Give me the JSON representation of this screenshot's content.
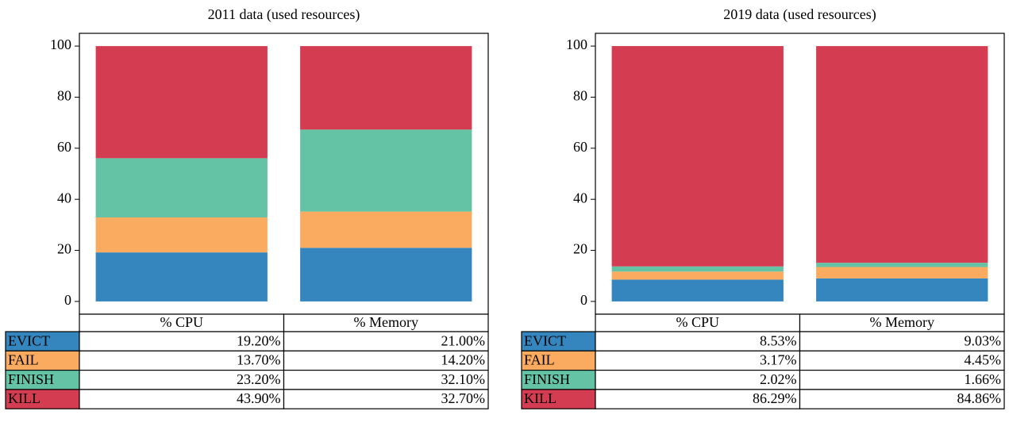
{
  "chart_data": [
    {
      "type": "bar",
      "stacked": true,
      "title": "2011 data (used resources)",
      "categories": [
        "% CPU",
        "% Memory"
      ],
      "series": [
        {
          "name": "EVICT",
          "color": "#3586bf",
          "values": [
            19.2,
            21.0
          ],
          "value_labels": [
            "19.20%",
            "21.00%"
          ]
        },
        {
          "name": "FAIL",
          "color": "#fbab60",
          "values": [
            13.7,
            14.2
          ],
          "value_labels": [
            "13.70%",
            "14.20%"
          ]
        },
        {
          "name": "FINISH",
          "color": "#64c3a5",
          "values": [
            23.2,
            32.1
          ],
          "value_labels": [
            "23.20%",
            "32.10%"
          ]
        },
        {
          "name": "KILL",
          "color": "#d43d51",
          "values": [
            43.9,
            32.7
          ],
          "value_labels": [
            "43.90%",
            "32.70%"
          ]
        }
      ],
      "ylim": [
        -5,
        105
      ],
      "yticks": [
        0,
        20,
        40,
        60,
        80,
        100
      ],
      "grid": false
    },
    {
      "type": "bar",
      "stacked": true,
      "title": "2019 data (used resources)",
      "categories": [
        "% CPU",
        "% Memory"
      ],
      "series": [
        {
          "name": "EVICT",
          "color": "#3586bf",
          "values": [
            8.53,
            9.03
          ],
          "value_labels": [
            "8.53%",
            "9.03%"
          ]
        },
        {
          "name": "FAIL",
          "color": "#fbab60",
          "values": [
            3.17,
            4.45
          ],
          "value_labels": [
            "3.17%",
            "4.45%"
          ]
        },
        {
          "name": "FINISH",
          "color": "#64c3a5",
          "values": [
            2.02,
            1.66
          ],
          "value_labels": [
            "2.02%",
            "1.66%"
          ]
        },
        {
          "name": "KILL",
          "color": "#d43d51",
          "values": [
            86.29,
            84.86
          ],
          "value_labels": [
            "86.29%",
            "84.86%"
          ]
        }
      ],
      "ylim": [
        -5,
        105
      ],
      "yticks": [
        0,
        20,
        40,
        60,
        80,
        100
      ],
      "grid": false
    }
  ]
}
